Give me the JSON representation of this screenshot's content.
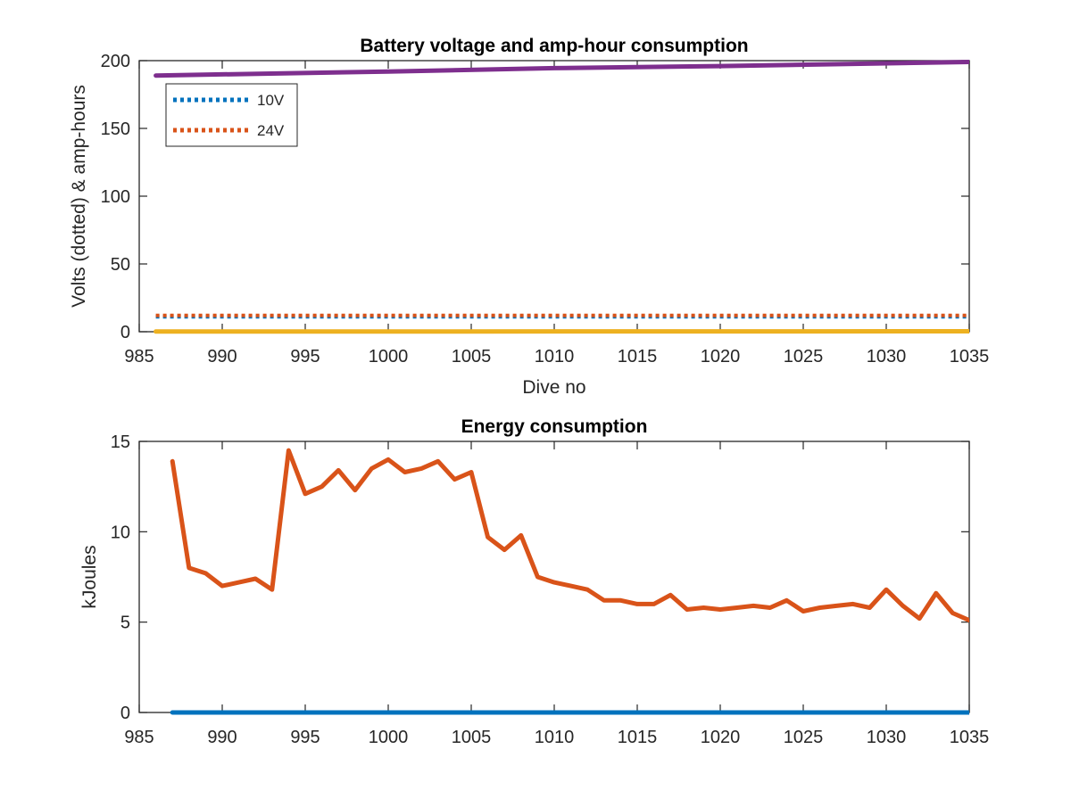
{
  "colors": {
    "series_10V": "#0072BD",
    "series_24V": "#D95319",
    "amp_hours_10V": "#EDB120",
    "amp_hours_24V": "#7E2F8E",
    "energy_main": "#D95319",
    "energy_zero": "#0072BD",
    "axes": "#262626"
  },
  "chart_data": [
    {
      "type": "line",
      "title": "Battery voltage and amp-hour consumption",
      "xlabel": "Dive no",
      "ylabel": "Volts (dotted) & amp-hours",
      "xlim": [
        985,
        1035
      ],
      "ylim": [
        0,
        200
      ],
      "xticks": [
        985,
        990,
        995,
        1000,
        1005,
        1010,
        1015,
        1020,
        1025,
        1030,
        1035
      ],
      "yticks": [
        0,
        50,
        100,
        150,
        200
      ],
      "grid": false,
      "legend_location": "top-left",
      "legend": [
        "10V",
        "24V"
      ],
      "series": [
        {
          "name": "10V",
          "style": "dotted",
          "color": "#0072BD",
          "x": [
            986,
            1035
          ],
          "y": [
            11,
            11
          ]
        },
        {
          "name": "24V",
          "style": "dotted",
          "color": "#D95319",
          "x": [
            986,
            1035
          ],
          "y": [
            12,
            12
          ]
        },
        {
          "style": "solid",
          "color": "#EDB120",
          "x": [
            986,
            1035
          ],
          "y": [
            0.1,
            0.3
          ]
        },
        {
          "style": "solid",
          "color": "#7E2F8E",
          "x": [
            986,
            1000,
            1010,
            1020,
            1035
          ],
          "y": [
            189,
            192,
            194.5,
            196,
            199
          ]
        }
      ]
    },
    {
      "type": "line",
      "title": "Energy consumption",
      "xlabel": "",
      "ylabel": "kJoules",
      "xlim": [
        985,
        1035
      ],
      "ylim": [
        0,
        15
      ],
      "xticks": [
        985,
        990,
        995,
        1000,
        1005,
        1010,
        1015,
        1020,
        1025,
        1030,
        1035
      ],
      "yticks": [
        0,
        5,
        10,
        15
      ],
      "grid": false,
      "series": [
        {
          "style": "solid",
          "color": "#D95319",
          "x": [
            987,
            988,
            989,
            990,
            991,
            992,
            993,
            994,
            995,
            996,
            997,
            998,
            999,
            1000,
            1001,
            1002,
            1003,
            1004,
            1005,
            1006,
            1007,
            1008,
            1009,
            1010,
            1011,
            1012,
            1013,
            1014,
            1015,
            1016,
            1017,
            1018,
            1019,
            1020,
            1021,
            1022,
            1023,
            1024,
            1025,
            1026,
            1027,
            1028,
            1029,
            1030,
            1031,
            1032,
            1033,
            1034,
            1035
          ],
          "y": [
            13.9,
            8.0,
            7.7,
            7.0,
            7.2,
            7.4,
            6.8,
            14.5,
            12.1,
            12.5,
            13.4,
            12.3,
            13.5,
            14.0,
            13.3,
            13.5,
            13.9,
            12.9,
            13.3,
            9.7,
            9.0,
            9.8,
            7.5,
            7.2,
            7.0,
            6.8,
            6.2,
            6.2,
            6.0,
            6.0,
            6.5,
            5.7,
            5.8,
            5.7,
            5.8,
            5.9,
            5.8,
            6.2,
            5.6,
            5.8,
            5.9,
            6.0,
            5.8,
            6.8,
            5.9,
            5.2,
            6.6,
            5.5,
            5.1
          ]
        },
        {
          "style": "solid",
          "color": "#0072BD",
          "x": [
            987,
            1035
          ],
          "y": [
            0,
            0
          ]
        }
      ]
    }
  ]
}
